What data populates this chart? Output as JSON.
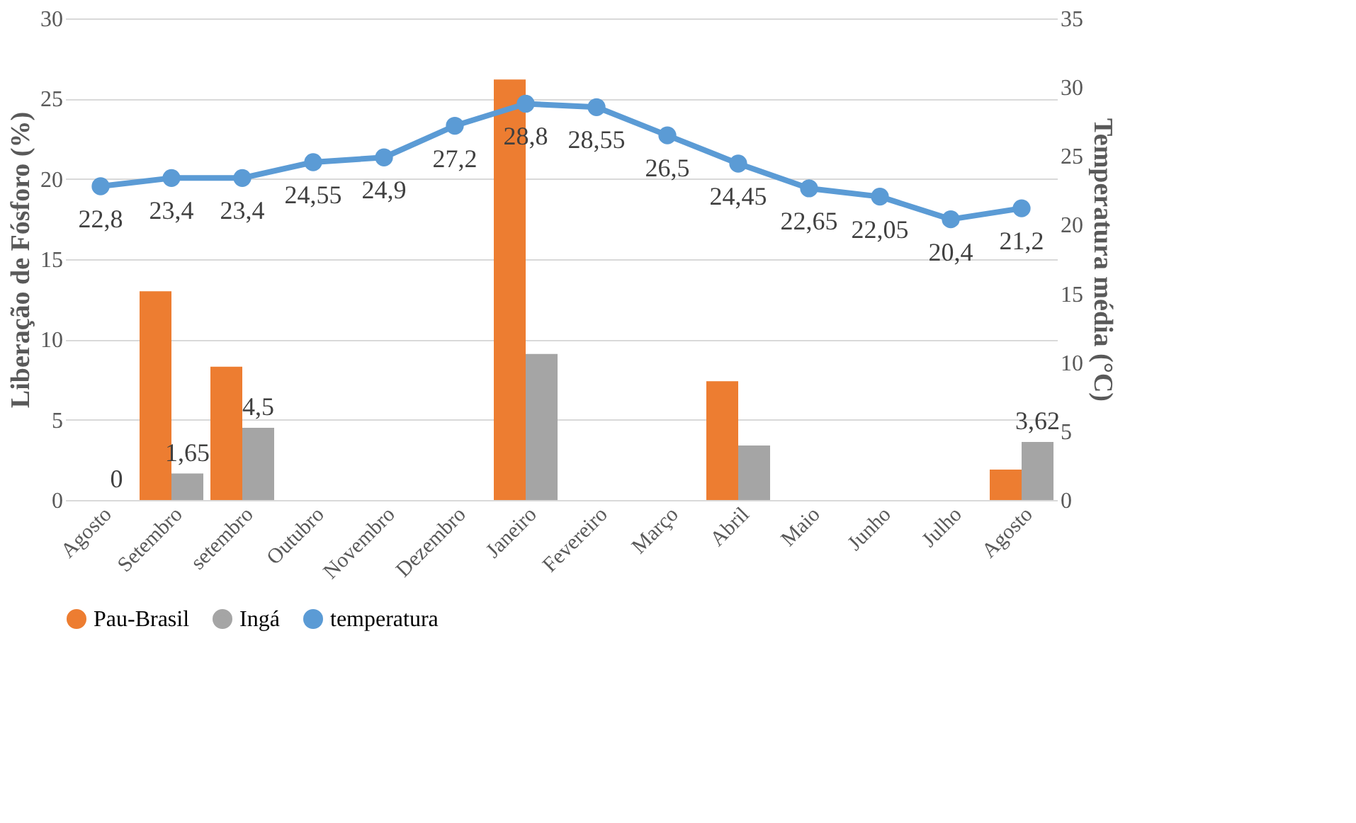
{
  "chart_data": {
    "type": "bar",
    "categories": [
      "Agosto",
      "Setembro",
      "setembro",
      "Outubro",
      "Novembro",
      "Dezembro",
      "Janeiro",
      "Fevereiro",
      "Março",
      "Abril",
      "Maio",
      "Junho",
      "Julho",
      "Agosto"
    ],
    "ylabel": "Liberação de Fósforo (%)",
    "y2label": "Temperatura  média (°C)",
    "ylim": [
      0,
      30
    ],
    "yticks": [
      0,
      5,
      10,
      15,
      20,
      25,
      30
    ],
    "y2lim": [
      0,
      35
    ],
    "y2ticks": [
      0,
      5,
      10,
      15,
      20,
      25,
      30,
      35
    ],
    "grid": "y",
    "legend": "bottom",
    "series": [
      {
        "name": "Pau-Brasil",
        "color": "#ed7d31",
        "values": [
          null,
          13,
          8.3,
          null,
          null,
          null,
          26.2,
          null,
          null,
          7.4,
          null,
          null,
          null,
          1.9
        ]
      },
      {
        "name": "Ingá",
        "color": "#a5a5a5",
        "values": [
          0,
          1.65,
          4.5,
          null,
          null,
          null,
          9.1,
          null,
          null,
          3.4,
          null,
          null,
          null,
          3.62
        ],
        "value_labels": [
          "0",
          "1,65",
          "4,5",
          null,
          null,
          null,
          null,
          null,
          null,
          null,
          null,
          null,
          null,
          "3,62"
        ]
      },
      {
        "name": "temperatura",
        "type": "line",
        "axis": "y2",
        "marker": "circle",
        "color": "#5b9bd5",
        "values": [
          22.8,
          23.4,
          23.4,
          24.55,
          24.9,
          27.2,
          28.8,
          28.55,
          26.5,
          24.45,
          22.65,
          22.05,
          20.4,
          21.2
        ],
        "value_labels": [
          "22,8",
          "23,4",
          "23,4",
          "24,55",
          "24,9",
          "27,2",
          "28,8",
          "28,55",
          "26,5",
          "24,45",
          "22,65",
          "22,05",
          "20,4",
          "21,2"
        ]
      }
    ]
  }
}
